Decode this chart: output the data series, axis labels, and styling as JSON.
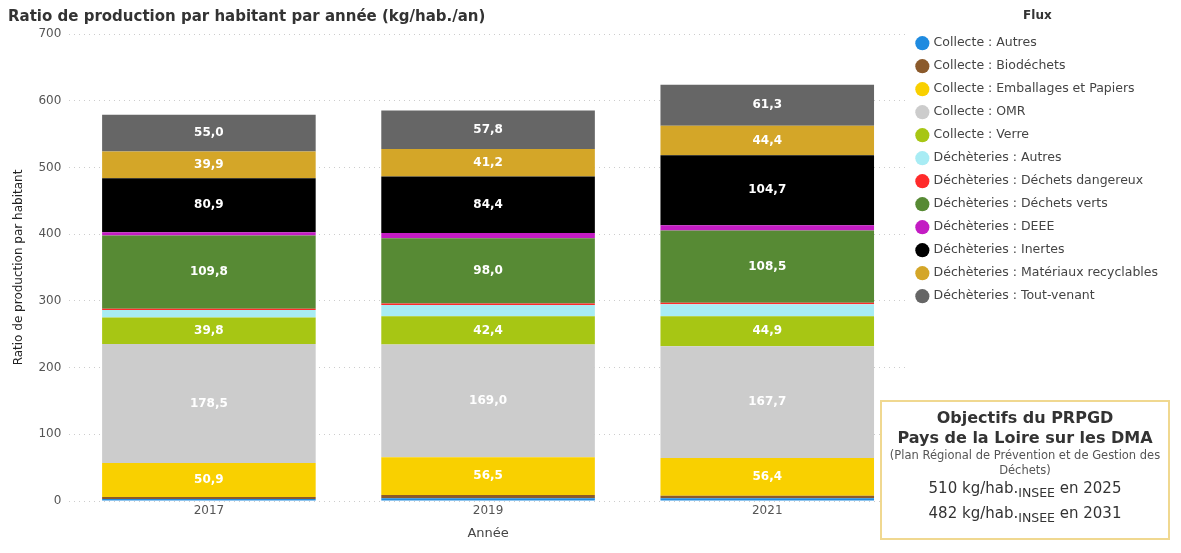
{
  "chart_data": {
    "type": "bar",
    "title": "Ratio de production par habitant par année (kg/hab./an)",
    "xlabel": "Année",
    "ylabel": "Ratio de production par habitant",
    "legend_title": "Flux",
    "categories": [
      "2017",
      "2019",
      "2021"
    ],
    "stacked": true,
    "ylim": [
      0,
      700
    ],
    "yticks": [
      0,
      100,
      200,
      300,
      400,
      500,
      600,
      700
    ],
    "grid": "y",
    "legend": "right",
    "series": [
      {
        "name": "Collecte : Autres",
        "color": "#1f8be0",
        "values": [
          3,
          4,
          4
        ]
      },
      {
        "name": "Collecte : Biodéchets",
        "color": "#8b5a2b",
        "values": [
          3,
          5,
          4
        ]
      },
      {
        "name": "Collecte : Emballages et Papiers",
        "color": "#f9d000",
        "values": [
          50.9,
          56.5,
          56.4
        ],
        "value_labels": [
          "50,9",
          "56,5",
          "56,4"
        ]
      },
      {
        "name": "Collecte : OMR",
        "color": "#cccccc",
        "values": [
          178.5,
          169.0,
          167.7
        ],
        "value_labels": [
          "178,5",
          "169,0",
          "167,7"
        ]
      },
      {
        "name": "Collecte : Verre",
        "color": "#a7c614",
        "values": [
          39.8,
          42.4,
          44.9
        ],
        "value_labels": [
          "39,8",
          "42,4",
          "44,9"
        ]
      },
      {
        "name": "Déchèteries : Autres",
        "color": "#a8ecf4",
        "values": [
          11,
          17,
          18
        ]
      },
      {
        "name": "Déchèteries : Déchets dangereux",
        "color": "#ff2a2a",
        "values": [
          2,
          2,
          2
        ]
      },
      {
        "name": "Déchèteries : Déchets verts",
        "color": "#578a34",
        "values": [
          109.8,
          98.0,
          108.5
        ],
        "value_labels": [
          "109,8",
          "98,0",
          "108,5"
        ]
      },
      {
        "name": "Déchèteries : DEEE",
        "color": "#c31cc3",
        "values": [
          5,
          8,
          8
        ]
      },
      {
        "name": "Déchèteries : Inertes",
        "color": "#000000",
        "values": [
          80.9,
          84.4,
          104.7
        ],
        "value_labels": [
          "80,9",
          "84,4",
          "104,7"
        ]
      },
      {
        "name": "Déchèteries : Matériaux recyclables",
        "color": "#d4a628",
        "values": [
          39.9,
          41.2,
          44.4
        ],
        "value_labels": [
          "39,9",
          "41,2",
          "44,4"
        ]
      },
      {
        "name": "Déchèteries : Tout-venant",
        "color": "#666666",
        "values": [
          55.0,
          57.8,
          61.3
        ],
        "value_labels": [
          "55,0",
          "57,8",
          "61,3"
        ]
      }
    ],
    "annotations": [
      "Objectifs du PRPGD",
      "Pays de la Loire sur les DMA",
      "(Plan Régional de Prévention et de Gestion des Déchets)",
      "510 kg/hab.$_{INSEE}$ en 2025",
      "482 kg/hab.$_{INSEE}$ en 2031"
    ]
  }
}
